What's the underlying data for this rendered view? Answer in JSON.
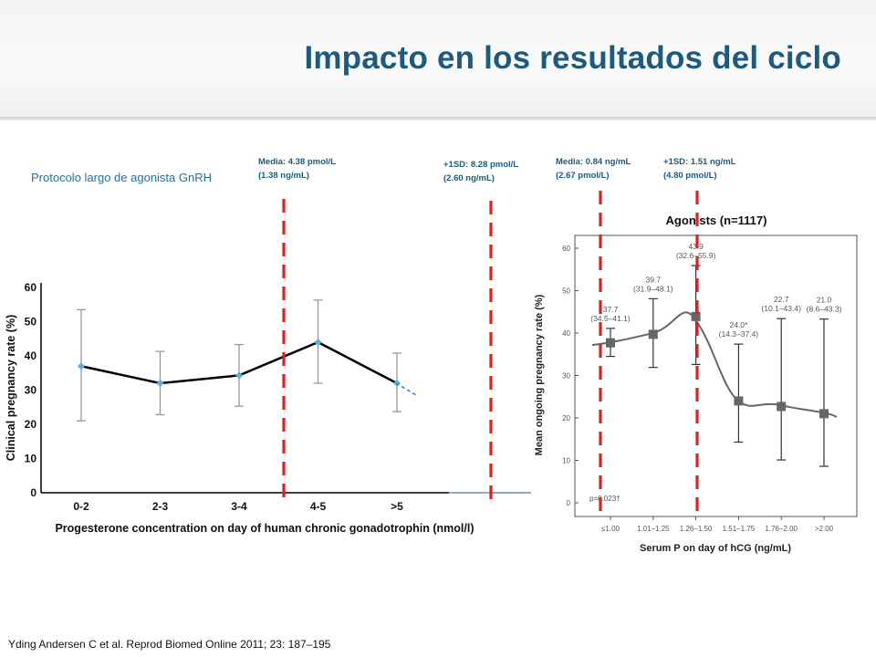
{
  "slide": {
    "title": "Impacto en los resultados del ciclo",
    "protocol_label": "Protocolo largo de agonista GnRH",
    "citation": "Yding Andersen C et al. Reprod Biomed Online 2011;  23: 187–195"
  },
  "annotations": [
    {
      "line1": "Media: 4.38 pmol/L",
      "line2": "(1.38 ng/mL)"
    },
    {
      "line1": "+1SD: 8.28 pmol/L",
      "line2": "(2.60 ng/mL)"
    },
    {
      "line1": "Media: 0.84 ng/mL",
      "line2": "(2.67 pmol/L)"
    },
    {
      "line1": "+1SD: 1.51 ng/mL",
      "line2": "(4.80 pmol/L)"
    }
  ],
  "colors": {
    "title": "#1c5b7d",
    "reference_line": "#e0201a",
    "left_marker": "#5aaee0",
    "right_marker": "#666666"
  },
  "chart_data": [
    {
      "type": "line",
      "categories": [
        "0-2",
        "2-3",
        "3-4",
        "4-5",
        ">5"
      ],
      "values": [
        37,
        32,
        34.3,
        44,
        32
      ],
      "error_low": [
        21,
        22.8,
        25.3,
        32,
        23.7
      ],
      "error_high": [
        53.5,
        41.3,
        43.3,
        56.3,
        40.8
      ],
      "title": "",
      "xlabel": "Progesterone concentration on day of human chronic gonadotrophin (nmol/l)",
      "ylabel": "Clinical pregnancy rate (%)",
      "ylim": [
        0,
        60
      ],
      "yticks": [
        0,
        10,
        20,
        30,
        40,
        50,
        60
      ],
      "grid": false
    },
    {
      "type": "line",
      "title": "Agonists (n=1117)",
      "categories": [
        "≤1.00",
        "1.01–1.25",
        "1.26–1.50",
        "1.51–1.75",
        "1.76–2.00",
        ">2.00"
      ],
      "values": [
        37.7,
        39.7,
        43.9,
        24.0,
        22.7,
        21.0
      ],
      "error_low": [
        34.5,
        31.9,
        32.6,
        14.3,
        10.1,
        8.6
      ],
      "error_high": [
        41.1,
        48.1,
        55.9,
        37.4,
        43.4,
        43.3
      ],
      "point_labels": [
        {
          "value": "37.7",
          "ci": "(34.5–41.1)"
        },
        {
          "value": "39.7",
          "ci": "(31.9–48.1)"
        },
        {
          "value": "43.9",
          "ci": "(32.6–55.9)"
        },
        {
          "value": "24.0*",
          "ci": "(14.3–37.4)"
        },
        {
          "value": "22.7",
          "ci": "(10.1–43.4)"
        },
        {
          "value": "21.0",
          "ci": "(8.6–43.3)"
        }
      ],
      "annotation": "p=0.023†",
      "xlabel": "Serum P on day of hCG (ng/mL)",
      "ylabel": "Mean ongoing pregnancy rate (%)",
      "ylim": [
        0,
        60
      ],
      "yticks": [
        0,
        10,
        20,
        30,
        40,
        50,
        60
      ],
      "grid": false
    }
  ]
}
